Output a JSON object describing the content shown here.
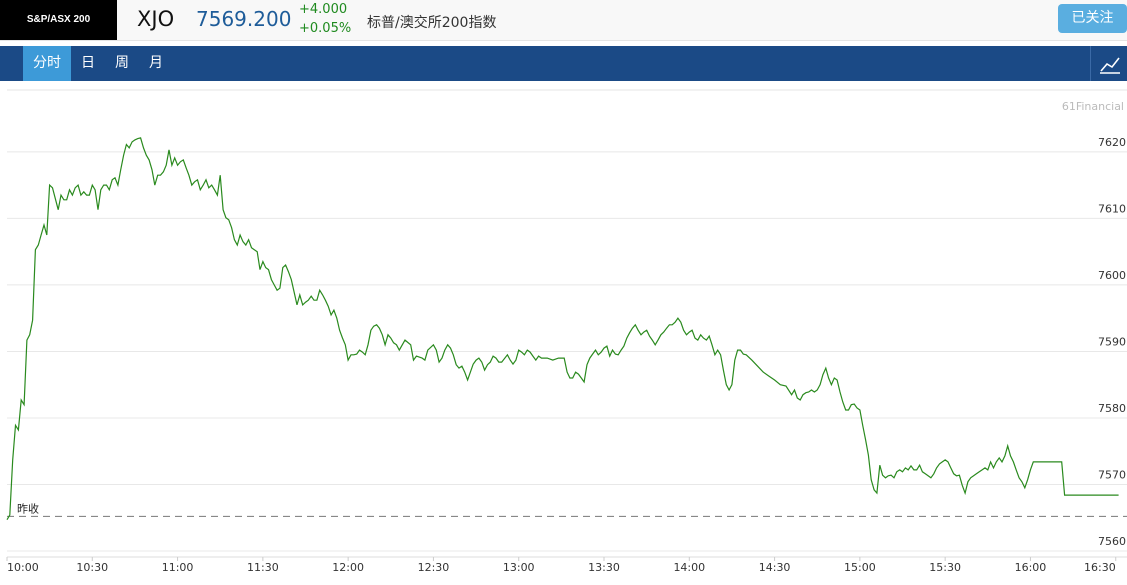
{
  "header": {
    "logo": "S&P/ASX 200",
    "symbol": "XJO",
    "price": "7569.200",
    "change": "+4.000",
    "change_pct": "+0.05%",
    "name": "标普/澳交所200指数",
    "follow_button": "已关注"
  },
  "tabs": [
    "分时",
    "日",
    "周",
    "月"
  ],
  "chart_data": {
    "type": "line",
    "watermark": "61Financial",
    "color": "#2a8a1e",
    "grid": true,
    "reference_line": {
      "value": 7565.2,
      "label": "昨收"
    },
    "xlim": [
      0,
      391.5
    ],
    "xticks": [
      {
        "value": 0,
        "label": "10:00"
      },
      {
        "value": 30,
        "label": "10:30"
      },
      {
        "value": 60,
        "label": "11:00"
      },
      {
        "value": 90,
        "label": "11:30"
      },
      {
        "value": 120,
        "label": "12:00"
      },
      {
        "value": 150,
        "label": "12:30"
      },
      {
        "value": 180,
        "label": "13:00"
      },
      {
        "value": 210,
        "label": "13:30"
      },
      {
        "value": 240,
        "label": "14:00"
      },
      {
        "value": 270,
        "label": "14:30"
      },
      {
        "value": 300,
        "label": "15:00"
      },
      {
        "value": 330,
        "label": "15:30"
      },
      {
        "value": 360,
        "label": "16:00"
      },
      {
        "value": 390,
        "label": "16:30"
      }
    ],
    "ylim": [
      7559.1,
      7629.3
    ],
    "yticks": [
      7560,
      7570,
      7580,
      7590,
      7600,
      7610,
      7620
    ],
    "x": [
      0,
      1,
      2,
      3,
      4,
      5,
      6,
      7,
      8,
      9,
      10,
      11,
      12,
      13,
      14,
      15,
      16,
      18,
      19,
      20,
      21,
      22,
      23,
      24,
      25,
      26,
      27,
      28,
      29,
      30,
      31,
      32,
      33,
      34,
      35,
      36,
      37,
      38,
      39,
      40,
      41,
      42,
      43,
      44,
      45,
      46,
      47,
      48,
      49,
      50,
      51,
      52,
      53,
      54,
      55,
      56,
      57,
      58,
      59,
      60,
      61,
      62,
      63,
      64,
      65,
      66,
      67,
      68,
      69,
      70,
      71,
      72,
      73,
      74,
      75,
      76,
      77,
      78,
      79,
      80,
      81,
      82,
      83,
      84,
      85,
      86,
      87,
      88,
      89,
      90,
      91,
      92,
      93,
      94,
      95,
      96,
      97,
      98,
      99,
      100,
      102,
      103,
      104,
      105,
      106,
      107,
      108,
      109,
      110,
      111,
      112,
      113,
      114,
      115,
      116,
      117,
      118,
      119,
      120,
      121,
      122,
      123,
      124,
      125,
      126,
      127,
      128,
      129,
      130,
      131,
      132,
      133,
      134,
      135,
      136,
      137,
      138,
      140,
      142,
      143,
      144,
      146,
      147,
      148,
      150,
      151,
      152,
      153,
      154,
      155,
      156,
      157,
      158,
      159,
      160,
      161,
      162,
      163,
      164,
      165,
      166,
      167,
      168,
      169,
      170,
      171,
      172,
      173,
      174,
      176,
      177,
      178,
      179,
      180,
      181,
      182,
      183,
      184,
      185,
      186,
      187,
      188,
      190,
      192,
      194,
      196,
      197,
      198,
      199,
      200,
      201,
      202,
      203,
      204,
      205,
      206,
      207,
      208,
      209,
      210,
      211,
      212,
      213,
      214,
      215,
      216,
      217,
      218,
      219,
      220,
      221,
      222,
      223,
      224,
      225,
      226,
      227,
      228,
      229,
      230,
      231,
      232,
      233,
      234,
      235,
      236,
      237,
      238,
      239,
      240,
      241,
      242,
      243,
      244,
      245,
      246,
      247,
      248,
      249,
      250,
      251,
      252,
      253,
      254,
      255,
      256,
      257,
      258,
      259,
      260,
      262,
      264,
      266,
      268,
      270,
      272,
      274,
      276,
      277,
      278,
      279,
      280,
      281,
      282,
      283,
      284,
      285,
      286,
      287,
      288,
      289,
      290,
      291,
      292,
      293,
      294,
      295,
      296,
      297,
      298,
      299,
      300,
      301,
      302,
      303,
      304,
      305,
      306,
      307,
      308,
      309,
      310,
      311,
      312,
      313,
      314,
      315,
      316,
      317,
      318,
      319,
      320,
      321,
      322,
      323,
      324,
      325,
      326,
      327,
      328,
      329,
      330,
      331,
      332,
      333,
      334,
      335,
      336,
      337,
      338,
      339,
      340,
      341,
      342,
      343,
      344,
      345,
      346,
      347,
      348,
      349,
      350,
      351,
      352,
      353,
      354,
      355,
      356,
      357,
      358,
      359,
      360,
      361,
      371,
      372,
      391
    ],
    "values": [
      7564.7,
      7565.4,
      7573.7,
      7578.9,
      7578.2,
      7582.7,
      7582.0,
      7591.7,
      7592.5,
      7594.7,
      7605.3,
      7606.0,
      7607.5,
      7609.0,
      7607.5,
      7615.0,
      7614.6,
      7611.3,
      7613.5,
      7612.8,
      7612.8,
      7614.3,
      7613.5,
      7614.6,
      7615.0,
      7613.5,
      7614.0,
      7613.5,
      7613.5,
      7615.0,
      7614.3,
      7611.3,
      7614.3,
      7615.0,
      7615.0,
      7614.3,
      7615.8,
      7616.1,
      7615.0,
      7617.3,
      7619.5,
      7621.1,
      7620.6,
      7621.5,
      7621.8,
      7622.0,
      7622.1,
      7620.6,
      7619.5,
      7618.8,
      7617.3,
      7615.0,
      7616.5,
      7616.5,
      7617.0,
      7618.0,
      7620.3,
      7618.0,
      7619.1,
      7618.0,
      7618.5,
      7618.8,
      7617.6,
      7616.5,
      7615.0,
      7615.5,
      7615.8,
      7614.3,
      7615.0,
      7615.8,
      7614.6,
      7615.0,
      7614.3,
      7613.5,
      7616.5,
      7611.3,
      7610.1,
      7609.8,
      7608.6,
      7606.8,
      7606.0,
      7607.5,
      7606.5,
      7606.0,
      7606.8,
      7605.6,
      7605.3,
      7605.0,
      7602.3,
      7603.5,
      7602.6,
      7602.3,
      7600.8,
      7600.0,
      7599.2,
      7599.5,
      7602.6,
      7603.0,
      7602.0,
      7600.8,
      7597.0,
      7598.5,
      7597.0,
      7597.4,
      7597.7,
      7598.3,
      7597.7,
      7597.7,
      7599.2,
      7598.5,
      7597.7,
      7596.8,
      7595.5,
      7596.2,
      7595.0,
      7593.2,
      7592.0,
      7591.0,
      7588.7,
      7589.5,
      7589.5,
      7589.6,
      7590.2,
      7589.9,
      7589.5,
      7591.0,
      7593.2,
      7593.8,
      7594.0,
      7593.5,
      7592.5,
      7591.0,
      7592.5,
      7592.0,
      7591.3,
      7591.0,
      7590.2,
      7591.7,
      7591.0,
      7588.7,
      7589.3,
      7589.0,
      7588.7,
      7590.2,
      7591.0,
      7590.2,
      7588.4,
      7589.0,
      7590.2,
      7591.0,
      7590.5,
      7589.5,
      7588.0,
      7587.5,
      7587.8,
      7586.9,
      7585.7,
      7586.9,
      7588.1,
      7588.7,
      7589.0,
      7588.4,
      7587.2,
      7588.0,
      7588.4,
      7589.3,
      7589.0,
      7588.4,
      7588.4,
      7589.5,
      7588.7,
      7588.1,
      7588.7,
      7590.2,
      7589.9,
      7589.5,
      7590.2,
      7589.9,
      7589.3,
      7588.7,
      7589.3,
      7589.0,
      7589.0,
      7588.7,
      7589.0,
      7589.0,
      7586.9,
      7586.0,
      7586.0,
      7586.9,
      7586.6,
      7586.0,
      7585.4,
      7588.0,
      7589.0,
      7589.6,
      7590.2,
      7589.5,
      7589.9,
      7590.5,
      7590.8,
      7589.3,
      7590.2,
      7589.6,
      7589.5,
      7590.2,
      7590.8,
      7592.0,
      7592.8,
      7593.5,
      7594.0,
      7593.2,
      7592.5,
      7592.9,
      7593.2,
      7592.3,
      7591.7,
      7591.0,
      7591.7,
      7592.5,
      7592.9,
      7593.5,
      7594.0,
      7594.0,
      7594.4,
      7595.0,
      7594.4,
      7593.2,
      7592.5,
      7592.9,
      7593.2,
      7592.0,
      7591.7,
      7592.5,
      7592.0,
      7591.7,
      7592.3,
      7591.0,
      7589.5,
      7590.2,
      7589.5,
      7587.2,
      7585.0,
      7584.2,
      7585.0,
      7588.7,
      7590.2,
      7590.2,
      7589.6,
      7589.5,
      7588.7,
      7587.8,
      7586.9,
      7586.3,
      7585.7,
      7585.0,
      7584.8,
      7583.5,
      7584.2,
      7583.0,
      7582.7,
      7583.5,
      7583.8,
      7583.9,
      7584.2,
      7583.9,
      7584.2,
      7585.0,
      7586.5,
      7587.5,
      7586.0,
      7585.0,
      7586.0,
      7585.7,
      7583.9,
      7582.4,
      7581.2,
      7581.2,
      7582.0,
      7582.1,
      7581.5,
      7581.2,
      7578.9,
      7576.7,
      7574.4,
      7570.7,
      7569.2,
      7568.7,
      7572.9,
      7571.4,
      7571.0,
      7571.3,
      7571.4,
      7571.0,
      7571.9,
      7572.2,
      7571.9,
      7572.5,
      7572.2,
      7572.8,
      7572.2,
      7572.2,
      7572.9,
      7571.9,
      7571.6,
      7571.3,
      7571.0,
      7571.6,
      7572.5,
      7573.1,
      7573.4,
      7573.7,
      7573.4,
      7572.5,
      7571.6,
      7571.3,
      7571.4,
      7569.9,
      7568.7,
      7570.4,
      7571.0,
      7571.3,
      7571.6,
      7571.9,
      7572.2,
      7572.5,
      7572.2,
      7573.4,
      7572.5,
      7573.4,
      7574.0,
      7573.4,
      7574.3,
      7575.8,
      7574.3,
      7573.4,
      7572.2,
      7571.0,
      7570.4,
      7569.5,
      7570.7,
      7572.2,
      7573.4,
      7573.4,
      7568.4,
      7568.4
    ]
  }
}
